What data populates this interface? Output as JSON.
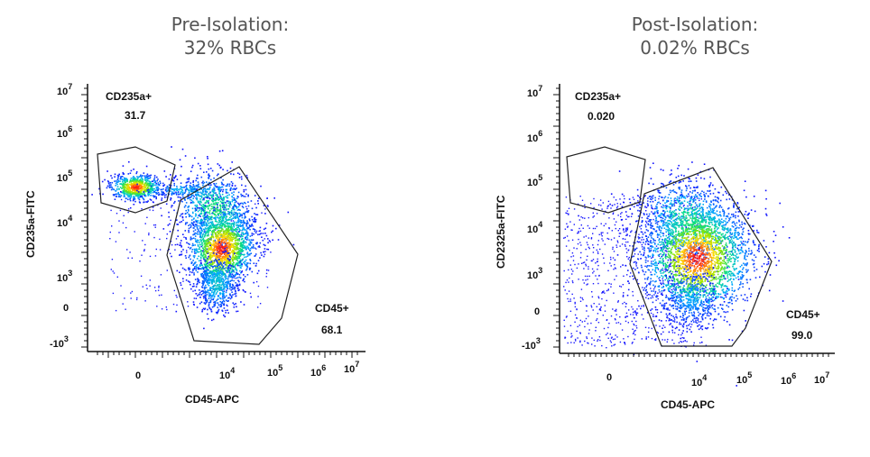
{
  "chart_data": [
    {
      "type": "scatter",
      "title": [
        "Pre-Isolation:",
        "32% RBCs"
      ],
      "xlabel": "CD45-APC",
      "ylabel": "CD235a-FITC",
      "x_scale": "biexponential",
      "y_scale": "biexponential",
      "xticks": [
        "0",
        "10^4",
        "10^5",
        "10^6",
        "10^7"
      ],
      "yticks": [
        "10^7",
        "10^6",
        "10^5",
        "10^4",
        "10^3",
        "0",
        "-10^3"
      ],
      "gates": [
        {
          "name": "CD235a+",
          "percent": "31.7"
        },
        {
          "name": "CD45+",
          "percent": "68.1"
        }
      ],
      "populations": [
        {
          "gate": "CD235a+",
          "cd45_apc": 0,
          "cd235a_fitc": 50000
        },
        {
          "gate": "CD45+",
          "cd45_apc": 10000,
          "cd235a_fitc": 2500
        },
        {
          "gate": "CD45+",
          "cd45_apc": 5000,
          "cd235a_fitc": 25000
        }
      ]
    },
    {
      "type": "scatter",
      "title": [
        "Post-Isolation:",
        "0.02% RBCs"
      ],
      "xlabel": "CD45-APC",
      "ylabel": "CD2325a-FITC",
      "x_scale": "biexponential",
      "y_scale": "biexponential",
      "xticks": [
        "0",
        "10^4",
        "10^5",
        "10^6",
        "10^7"
      ],
      "yticks": [
        "10^7",
        "10^6",
        "10^5",
        "10^4",
        "10^3",
        "0",
        "-10^3"
      ],
      "gates": [
        {
          "name": "CD235a+",
          "percent": "0.020"
        },
        {
          "name": "CD45+",
          "percent": "99.0"
        }
      ],
      "populations": [
        {
          "gate": "CD45+",
          "cd45_apc": 10000,
          "cd235a_fitc": 2500
        },
        {
          "gate": "CD45+",
          "cd45_apc": 5000,
          "cd235a_fitc": 20000
        }
      ]
    }
  ],
  "colors": {
    "title": "#555555",
    "density_low": "#1010ff",
    "density_high": "#ff1010"
  }
}
